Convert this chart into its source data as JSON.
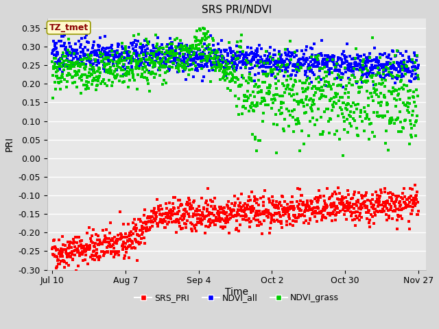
{
  "title": "SRS PRI/NDVI",
  "xlabel": "Time",
  "ylabel": "PRI",
  "ylim": [
    -0.3,
    0.375
  ],
  "yticks": [
    -0.3,
    -0.25,
    -0.2,
    -0.15,
    -0.1,
    -0.05,
    0.0,
    0.05,
    0.1,
    0.15,
    0.2,
    0.25,
    0.3,
    0.35
  ],
  "xtick_labels": [
    "Jul 10",
    "Aug 7",
    "Sep 4",
    "Oct 2",
    "Oct 30",
    "Nov 27"
  ],
  "xtick_positions": [
    0,
    28,
    56,
    84,
    112,
    140
  ],
  "n_days": 141,
  "pts_per_day": 8,
  "annotation_text": "TZ_tmet",
  "annotation_color": "#8B0000",
  "annotation_bg": "#FFFACD",
  "legend_labels": [
    "SRS_PRI",
    "NDVI_all",
    "NDVI_grass"
  ],
  "colors": {
    "SRS_PRI": "#FF0000",
    "NDVI_all": "#0000FF",
    "NDVI_grass": "#00CC00"
  },
  "background_color": "#D8D8D8",
  "plot_bg": "#E8E8E8",
  "seed": 42
}
